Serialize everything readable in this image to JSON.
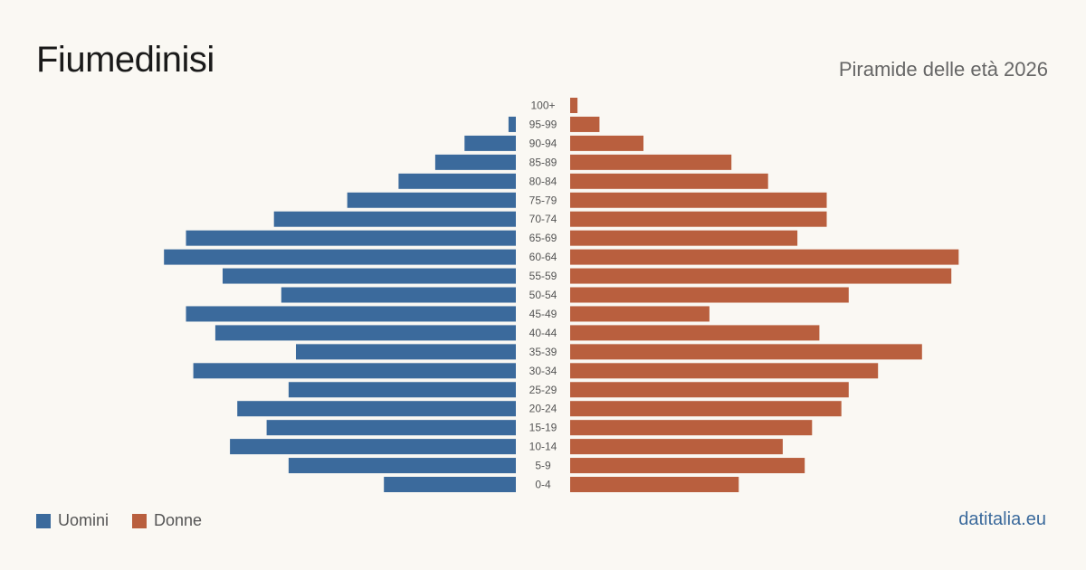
{
  "header": {
    "title": "Fiumedinisi",
    "subtitle": "Piramide delle età 2026"
  },
  "legend": {
    "men_label": "Uomini",
    "women_label": "Donne"
  },
  "source": "datitalia.eu",
  "colors": {
    "men": "#3b6a9c",
    "women": "#b95f3e"
  },
  "chart_data": {
    "type": "bar",
    "orientation": "horizontal-pyramid",
    "categories": [
      "100+",
      "95-99",
      "90-94",
      "85-89",
      "80-84",
      "75-79",
      "70-74",
      "65-69",
      "60-64",
      "55-59",
      "50-54",
      "45-49",
      "40-44",
      "35-39",
      "30-34",
      "25-29",
      "20-24",
      "15-19",
      "10-14",
      "5-9",
      "0-4"
    ],
    "series": [
      {
        "name": "Uomini",
        "values": [
          0,
          1,
          7,
          11,
          16,
          23,
          33,
          45,
          48,
          40,
          32,
          45,
          41,
          30,
          44,
          31,
          38,
          34,
          39,
          31,
          18
        ]
      },
      {
        "name": "Donne",
        "values": [
          1,
          4,
          10,
          22,
          27,
          35,
          35,
          31,
          53,
          52,
          38,
          19,
          34,
          48,
          42,
          38,
          37,
          33,
          29,
          32,
          23
        ]
      }
    ]
  }
}
